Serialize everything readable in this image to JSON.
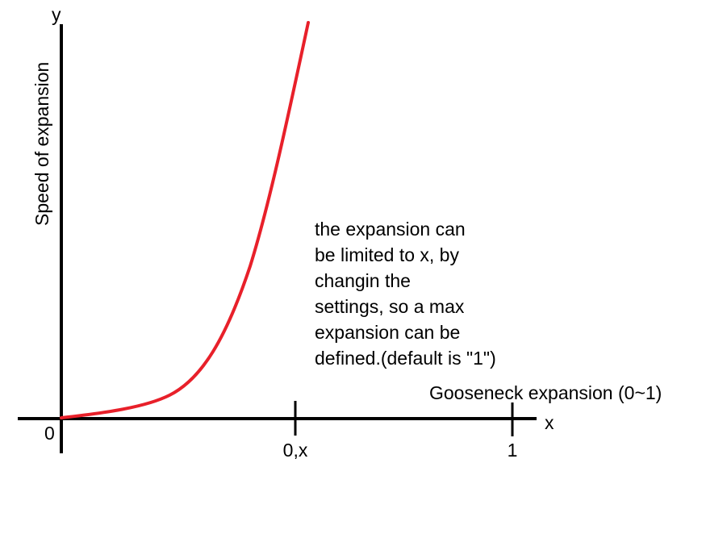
{
  "axes": {
    "y_label": "y",
    "x_label": "x",
    "origin": "0",
    "y_title": "Speed of expansion",
    "x_title": "Gooseneck expansion (0~1)"
  },
  "ticks": [
    "0,x",
    "1"
  ],
  "annotation": [
    "the expansion can",
    "be limited to x, by",
    "changin the",
    "settings, so a max",
    "expansion can be",
    "defined.(default is \"1\")"
  ]
}
